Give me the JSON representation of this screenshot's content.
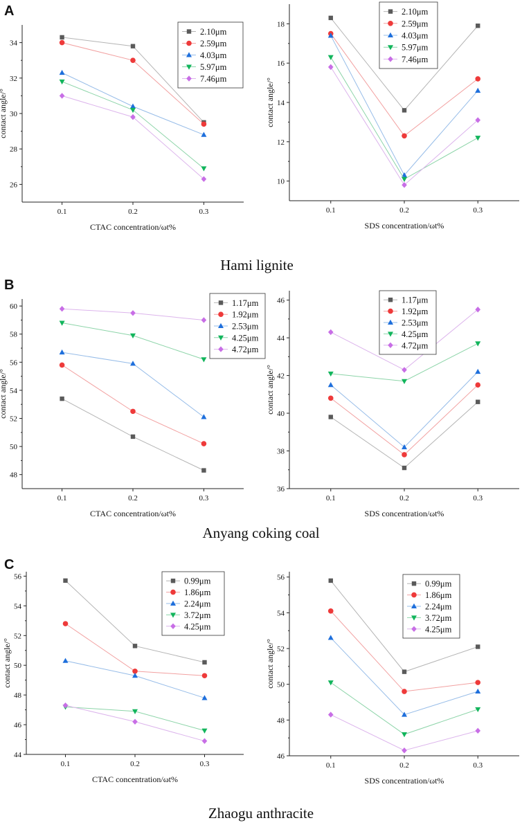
{
  "sections": [
    {
      "label": "A",
      "caption": "Hami lignite"
    },
    {
      "label": "B",
      "caption": "Anyang coking coal"
    },
    {
      "label": "C",
      "caption": "Zhaogu anthracite"
    }
  ],
  "colors": {
    "series": [
      "#5a5a5a",
      "#ee3a3a",
      "#1e6fdc",
      "#12b55c",
      "#c86ee6"
    ],
    "lines": [
      "#b4b4b4",
      "#f2a0a0",
      "#96bce8",
      "#8cd4a8",
      "#dcb4ec"
    ]
  },
  "chart_data": [
    {
      "type": "line",
      "section": "A",
      "xlabel": "CTAC concentration/ωt%",
      "ylabel": "contact angle/°",
      "categories": [
        "0.1",
        "0.2",
        "0.3"
      ],
      "x": [
        0.1,
        0.2,
        0.3
      ],
      "ylim": [
        25,
        35
      ],
      "yticks": [
        26,
        28,
        30,
        32,
        34
      ],
      "grid": false,
      "legend": "top-right",
      "series": [
        {
          "name": "2.10μm",
          "marker": "square",
          "values": [
            34.3,
            33.8,
            29.5
          ]
        },
        {
          "name": "2.59μm",
          "marker": "circle",
          "values": [
            34.0,
            33.0,
            29.4
          ]
        },
        {
          "name": "4.03μm",
          "marker": "triangle-up",
          "values": [
            32.3,
            30.4,
            28.8
          ]
        },
        {
          "name": "5.97μm",
          "marker": "triangle-down",
          "values": [
            31.8,
            30.2,
            26.9
          ]
        },
        {
          "name": "7.46μm",
          "marker": "diamond",
          "values": [
            31.0,
            29.8,
            26.3
          ]
        }
      ]
    },
    {
      "type": "line",
      "section": "A",
      "xlabel": "SDS concentration/ωt%",
      "ylabel": "contact angle/°",
      "categories": [
        "0.1",
        "0.2",
        "0.3"
      ],
      "x": [
        0.1,
        0.2,
        0.3
      ],
      "ylim": [
        9,
        19
      ],
      "yticks": [
        10,
        12,
        14,
        16,
        18
      ],
      "grid": false,
      "legend": "top-left",
      "series": [
        {
          "name": "2.10μm",
          "marker": "square",
          "values": [
            18.3,
            13.6,
            17.9
          ]
        },
        {
          "name": "2.59μm",
          "marker": "circle",
          "values": [
            17.5,
            12.3,
            15.2
          ]
        },
        {
          "name": "4.03μm",
          "marker": "triangle-up",
          "values": [
            17.4,
            10.3,
            14.6
          ]
        },
        {
          "name": "5.97μm",
          "marker": "triangle-down",
          "values": [
            16.3,
            10.1,
            12.2
          ]
        },
        {
          "name": "7.46μm",
          "marker": "diamond",
          "values": [
            15.8,
            9.8,
            13.1
          ]
        }
      ]
    },
    {
      "type": "line",
      "section": "B",
      "xlabel": "CTAC concentration/ωt%",
      "ylabel": "contact angle/°",
      "categories": [
        "0.1",
        "0.2",
        "0.3"
      ],
      "x": [
        0.1,
        0.2,
        0.3
      ],
      "ylim": [
        47,
        60.5
      ],
      "yticks": [
        48,
        50,
        52,
        54,
        56,
        58,
        60
      ],
      "grid": false,
      "legend": "top-right",
      "series": [
        {
          "name": "1.17μm",
          "marker": "square",
          "values": [
            53.4,
            50.7,
            48.3
          ]
        },
        {
          "name": "1.92μm",
          "marker": "circle",
          "values": [
            55.8,
            52.5,
            50.2
          ]
        },
        {
          "name": "2.53μm",
          "marker": "triangle-up",
          "values": [
            56.7,
            55.9,
            52.1
          ]
        },
        {
          "name": "4.25μm",
          "marker": "triangle-down",
          "values": [
            58.8,
            57.9,
            56.2
          ]
        },
        {
          "name": "4.72μm",
          "marker": "diamond",
          "values": [
            59.8,
            59.5,
            59.0
          ]
        }
      ]
    },
    {
      "type": "line",
      "section": "B",
      "xlabel": "SDS concentration/ωt%",
      "ylabel": "contact angle/°",
      "categories": [
        "0.1",
        "0.2",
        "0.3"
      ],
      "x": [
        0.1,
        0.2,
        0.3
      ],
      "ylim": [
        36,
        46.5
      ],
      "yticks": [
        36,
        38,
        40,
        42,
        44,
        46
      ],
      "grid": false,
      "legend": "top-center",
      "series": [
        {
          "name": "1.17μm",
          "marker": "square",
          "values": [
            39.8,
            37.1,
            40.6
          ]
        },
        {
          "name": "1.92μm",
          "marker": "circle",
          "values": [
            40.8,
            37.8,
            41.5
          ]
        },
        {
          "name": "2.53μm",
          "marker": "triangle-up",
          "values": [
            41.5,
            38.2,
            42.2
          ]
        },
        {
          "name": "4.25μm",
          "marker": "triangle-down",
          "values": [
            42.1,
            41.7,
            43.7
          ]
        },
        {
          "name": "4.72μm",
          "marker": "diamond",
          "values": [
            44.3,
            42.3,
            45.5
          ]
        }
      ]
    },
    {
      "type": "line",
      "section": "C",
      "xlabel": "CTAC concentration/ωt%",
      "ylabel": "contact angle/°",
      "categories": [
        "0.1",
        "0.2",
        "0.3"
      ],
      "x": [
        0.1,
        0.2,
        0.3
      ],
      "ylim": [
        44,
        56.3
      ],
      "yticks": [
        44,
        46,
        48,
        50,
        52,
        54,
        56
      ],
      "grid": false,
      "legend": "top-right",
      "series": [
        {
          "name": "0.99μm",
          "marker": "square",
          "values": [
            55.7,
            51.3,
            50.2
          ]
        },
        {
          "name": "1.86μm",
          "marker": "circle",
          "values": [
            52.8,
            49.6,
            49.3
          ]
        },
        {
          "name": "2.24μm",
          "marker": "triangle-up",
          "values": [
            50.3,
            49.3,
            47.8
          ]
        },
        {
          "name": "3.72μm",
          "marker": "triangle-down",
          "values": [
            47.2,
            46.9,
            45.6
          ]
        },
        {
          "name": "4.25μm",
          "marker": "diamond",
          "values": [
            47.3,
            46.2,
            44.9
          ]
        }
      ]
    },
    {
      "type": "line",
      "section": "C",
      "xlabel": "SDS concentration/ωt%",
      "ylabel": "contact angle/°",
      "categories": [
        "0.1",
        "0.2",
        "0.3"
      ],
      "x": [
        0.1,
        0.2,
        0.3
      ],
      "ylim": [
        46,
        56.3
      ],
      "yticks": [
        46,
        48,
        50,
        52,
        54,
        56
      ],
      "grid": false,
      "legend": "top-center",
      "series": [
        {
          "name": "0.99μm",
          "marker": "square",
          "values": [
            55.8,
            50.7,
            52.1
          ]
        },
        {
          "name": "1.86μm",
          "marker": "circle",
          "values": [
            54.1,
            49.6,
            50.1
          ]
        },
        {
          "name": "2.24μm",
          "marker": "triangle-up",
          "values": [
            52.6,
            48.3,
            49.6
          ]
        },
        {
          "name": "3.72μm",
          "marker": "triangle-down",
          "values": [
            50.1,
            47.2,
            48.6
          ]
        },
        {
          "name": "4.25μm",
          "marker": "diamond",
          "values": [
            48.3,
            46.3,
            47.4
          ]
        }
      ]
    }
  ]
}
